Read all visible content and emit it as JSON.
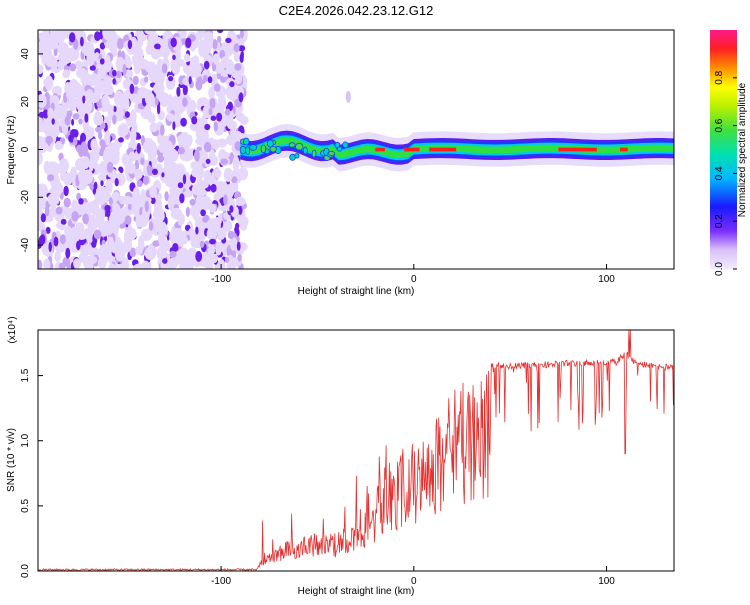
{
  "title": "C2E4.2026.042.23.12.G12",
  "colors": {
    "snr_line": "#e53030",
    "axis": "#000000"
  },
  "chart_data": [
    {
      "type": "heatmap",
      "xlabel": "Height of straight line (km)",
      "ylabel": "Frequency (Hz)",
      "xlim": [
        -195,
        135
      ],
      "ylim": [
        -50,
        50
      ],
      "xticks": [
        -100,
        0,
        100
      ],
      "yticks": [
        -40,
        -20,
        0,
        20,
        40
      ],
      "colorbar": {
        "label": "Normalized spectral amplitude",
        "range": [
          0,
          1
        ],
        "ticks": [
          0.0,
          0.2,
          0.4,
          0.6,
          0.8
        ]
      },
      "features": {
        "noise_region_x": [
          -195,
          -90
        ],
        "carrier_frequency_hz": 0,
        "carrier_start_x": -90
      }
    },
    {
      "type": "line",
      "xlabel": "Height of straight line (km)",
      "ylabel": "SNR (10 * v/v)",
      "yscale_label": "(x10⁴)",
      "xlim": [
        -195,
        135
      ],
      "ylim": [
        0,
        1.85
      ],
      "xticks": [
        -100,
        0,
        100
      ],
      "yticks": [
        0.0,
        0.5,
        1.0,
        1.5
      ],
      "profile": {
        "x": [
          -195,
          -82,
          -78,
          -60,
          -40,
          -25,
          -15,
          -5,
          5,
          15,
          25,
          40,
          60,
          80,
          95,
          105,
          110,
          115,
          135
        ],
        "y": [
          0.01,
          0.01,
          0.12,
          0.28,
          0.3,
          0.45,
          0.8,
          0.95,
          1.05,
          1.3,
          1.45,
          1.6,
          1.6,
          1.62,
          1.62,
          1.63,
          1.7,
          1.62,
          1.58
        ]
      }
    }
  ]
}
